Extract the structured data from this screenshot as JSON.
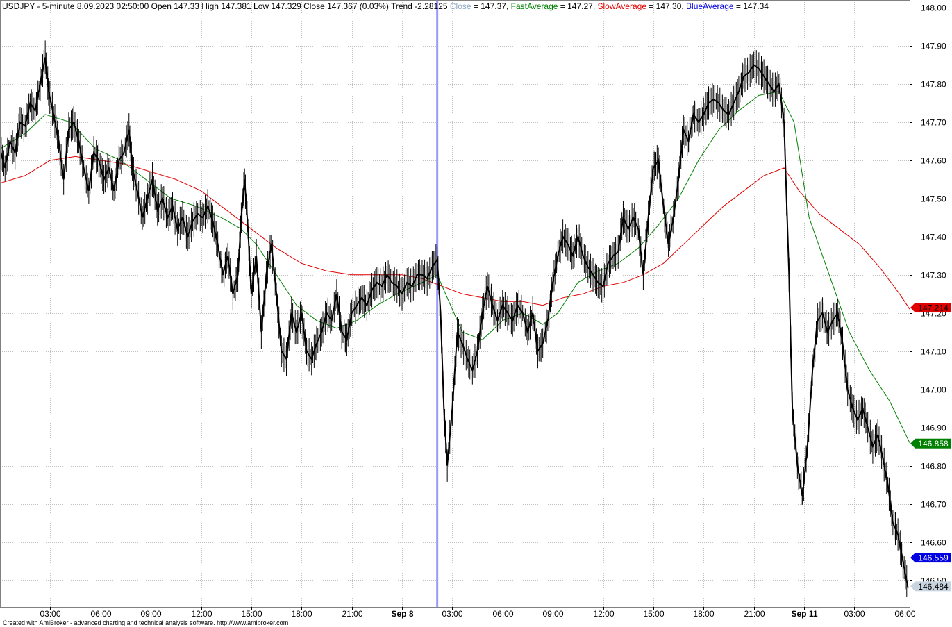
{
  "header": {
    "parts": [
      {
        "text": "USDJPY - 5-minute 8.09.2023 02:50:00 Open 147.33 High 147.381 Low 147.329 Close 147.367 (0.03%) Trend -2.28125 ",
        "color": "#000000"
      },
      {
        "text": "Close",
        "color": "#8fa8c8"
      },
      {
        "text": " = 147.37, ",
        "color": "#000000"
      },
      {
        "text": "FastAverage",
        "color": "#008000"
      },
      {
        "text": " = 147.27, ",
        "color": "#000000"
      },
      {
        "text": "SlowAverage",
        "color": "#e00000"
      },
      {
        "text": " = 147.30, ",
        "color": "#000000"
      },
      {
        "text": "BlueAverage",
        "color": "#0000e0"
      },
      {
        "text": " = 147.34",
        "color": "#000000"
      }
    ]
  },
  "footer_text": "Created with AmiBroker - advanced charting and technical analysis software. http://www.amibroker.com",
  "colors": {
    "price": "#000000",
    "fast": "#008000",
    "slow": "#e00000",
    "blue": "#0000e0",
    "cursor": "#9999ff",
    "grid": "#c0c0c0"
  },
  "chart_data": {
    "type": "candlestick",
    "symbol": "USDJPY",
    "interval": "5-minute",
    "ylim": [
      146.43,
      148.02
    ],
    "y_ticks": [
      "148.00",
      "147.90",
      "147.80",
      "147.70",
      "147.60",
      "147.50",
      "147.40",
      "147.30",
      "147.20",
      "147.10",
      "147.00",
      "146.90",
      "146.80",
      "146.70",
      "146.60",
      "146.50"
    ],
    "x_ticks": [
      {
        "label": "03:00",
        "pos": 3,
        "bold": false
      },
      {
        "label": "06:00",
        "pos": 6,
        "bold": false
      },
      {
        "label": "09:00",
        "pos": 9,
        "bold": false
      },
      {
        "label": "12:00",
        "pos": 12,
        "bold": false
      },
      {
        "label": "15:00",
        "pos": 15,
        "bold": false
      },
      {
        "label": "18:00",
        "pos": 18,
        "bold": false
      },
      {
        "label": "21:00",
        "pos": 21,
        "bold": false
      },
      {
        "label": "Sep 8",
        "pos": 24,
        "bold": true
      },
      {
        "label": "03:00",
        "pos": 27,
        "bold": false
      },
      {
        "label": "06:00",
        "pos": 30,
        "bold": false
      },
      {
        "label": "09:00",
        "pos": 33,
        "bold": false
      },
      {
        "label": "12:00",
        "pos": 36,
        "bold": false
      },
      {
        "label": "15:00",
        "pos": 39,
        "bold": false
      },
      {
        "label": "18:00",
        "pos": 42,
        "bold": false
      },
      {
        "label": "21:00",
        "pos": 45,
        "bold": false
      },
      {
        "label": "Sep 11",
        "pos": 48,
        "bold": true
      },
      {
        "label": "03:00",
        "pos": 51,
        "bold": false
      },
      {
        "label": "06:00",
        "pos": 54,
        "bold": false
      }
    ],
    "x_range": [
      0,
      54.3
    ],
    "cursor_pos": 26.1,
    "price_path": [
      [
        0,
        147.63
      ],
      [
        0.3,
        147.58
      ],
      [
        0.6,
        147.65
      ],
      [
        0.9,
        147.62
      ],
      [
        1.2,
        147.7
      ],
      [
        1.5,
        147.69
      ],
      [
        1.8,
        147.75
      ],
      [
        2.1,
        147.73
      ],
      [
        2.4,
        147.8
      ],
      [
        2.7,
        147.87
      ],
      [
        2.9,
        147.78
      ],
      [
        3.2,
        147.72
      ],
      [
        3.5,
        147.65
      ],
      [
        3.8,
        147.55
      ],
      [
        4.1,
        147.68
      ],
      [
        4.4,
        147.7
      ],
      [
        4.7,
        147.65
      ],
      [
        5.0,
        147.58
      ],
      [
        5.3,
        147.52
      ],
      [
        5.6,
        147.62
      ],
      [
        5.9,
        147.6
      ],
      [
        6.2,
        147.55
      ],
      [
        6.5,
        147.58
      ],
      [
        6.8,
        147.52
      ],
      [
        7.1,
        147.6
      ],
      [
        7.4,
        147.62
      ],
      [
        7.7,
        147.68
      ],
      [
        7.9,
        147.58
      ],
      [
        8.2,
        147.52
      ],
      [
        8.5,
        147.45
      ],
      [
        8.8,
        147.5
      ],
      [
        9.1,
        147.55
      ],
      [
        9.4,
        147.47
      ],
      [
        9.7,
        147.5
      ],
      [
        10.0,
        147.45
      ],
      [
        10.3,
        147.48
      ],
      [
        10.6,
        147.42
      ],
      [
        10.9,
        147.45
      ],
      [
        11.2,
        147.4
      ],
      [
        11.5,
        147.44
      ],
      [
        11.8,
        147.46
      ],
      [
        12.1,
        147.45
      ],
      [
        12.4,
        147.48
      ],
      [
        12.7,
        147.44
      ],
      [
        13.0,
        147.38
      ],
      [
        13.3,
        147.3
      ],
      [
        13.6,
        147.35
      ],
      [
        13.9,
        147.25
      ],
      [
        14.2,
        147.3
      ],
      [
        14.4,
        147.45
      ],
      [
        14.6,
        147.55
      ],
      [
        14.8,
        147.42
      ],
      [
        15.0,
        147.25
      ],
      [
        15.3,
        147.35
      ],
      [
        15.6,
        147.15
      ],
      [
        15.9,
        147.3
      ],
      [
        16.2,
        147.38
      ],
      [
        16.5,
        147.25
      ],
      [
        16.8,
        147.1
      ],
      [
        17.1,
        147.08
      ],
      [
        17.4,
        147.2
      ],
      [
        17.7,
        147.15
      ],
      [
        18.0,
        147.2
      ],
      [
        18.3,
        147.1
      ],
      [
        18.6,
        147.08
      ],
      [
        18.9,
        147.12
      ],
      [
        19.2,
        147.15
      ],
      [
        19.5,
        147.2
      ],
      [
        19.8,
        147.18
      ],
      [
        20.1,
        147.25
      ],
      [
        20.4,
        147.15
      ],
      [
        20.7,
        147.13
      ],
      [
        21.0,
        147.2
      ],
      [
        21.3,
        147.22
      ],
      [
        21.6,
        147.24
      ],
      [
        21.9,
        147.22
      ],
      [
        22.2,
        147.26
      ],
      [
        22.5,
        147.28
      ],
      [
        22.8,
        147.27
      ],
      [
        23.1,
        147.3
      ],
      [
        23.4,
        147.28
      ],
      [
        23.7,
        147.27
      ],
      [
        24.0,
        147.25
      ],
      [
        24.3,
        147.28
      ],
      [
        24.6,
        147.27
      ],
      [
        24.9,
        147.3
      ],
      [
        25.2,
        147.3
      ],
      [
        25.5,
        147.29
      ],
      [
        25.8,
        147.32
      ],
      [
        26.1,
        147.34
      ],
      [
        26.3,
        147.2
      ],
      [
        26.5,
        146.95
      ],
      [
        26.7,
        146.8
      ],
      [
        27.0,
        146.95
      ],
      [
        27.3,
        147.15
      ],
      [
        27.6,
        147.12
      ],
      [
        27.9,
        147.08
      ],
      [
        28.2,
        147.05
      ],
      [
        28.5,
        147.1
      ],
      [
        28.8,
        147.2
      ],
      [
        29.1,
        147.27
      ],
      [
        29.4,
        147.22
      ],
      [
        29.7,
        147.18
      ],
      [
        30.0,
        147.22
      ],
      [
        30.3,
        147.2
      ],
      [
        30.6,
        147.18
      ],
      [
        30.9,
        147.22
      ],
      [
        31.2,
        147.2
      ],
      [
        31.5,
        147.15
      ],
      [
        31.8,
        147.2
      ],
      [
        32.1,
        147.1
      ],
      [
        32.4,
        147.12
      ],
      [
        32.7,
        147.18
      ],
      [
        33.0,
        147.28
      ],
      [
        33.3,
        147.35
      ],
      [
        33.6,
        147.4
      ],
      [
        33.9,
        147.38
      ],
      [
        34.2,
        147.35
      ],
      [
        34.5,
        147.4
      ],
      [
        34.8,
        147.35
      ],
      [
        35.1,
        147.32
      ],
      [
        35.4,
        147.3
      ],
      [
        35.7,
        147.28
      ],
      [
        36.0,
        147.27
      ],
      [
        36.3,
        147.33
      ],
      [
        36.6,
        147.35
      ],
      [
        36.9,
        147.36
      ],
      [
        37.2,
        147.45
      ],
      [
        37.5,
        147.42
      ],
      [
        37.8,
        147.45
      ],
      [
        38.1,
        147.42
      ],
      [
        38.4,
        147.3
      ],
      [
        38.7,
        147.45
      ],
      [
        39.0,
        147.58
      ],
      [
        39.3,
        147.6
      ],
      [
        39.6,
        147.48
      ],
      [
        39.9,
        147.38
      ],
      [
        40.2,
        147.45
      ],
      [
        40.5,
        147.55
      ],
      [
        40.8,
        147.68
      ],
      [
        41.1,
        147.65
      ],
      [
        41.4,
        147.72
      ],
      [
        41.7,
        147.7
      ],
      [
        42.0,
        147.72
      ],
      [
        42.3,
        147.75
      ],
      [
        42.6,
        147.76
      ],
      [
        42.9,
        147.75
      ],
      [
        43.2,
        147.73
      ],
      [
        43.5,
        147.72
      ],
      [
        43.8,
        147.75
      ],
      [
        44.1,
        147.78
      ],
      [
        44.4,
        147.82
      ],
      [
        44.7,
        147.83
      ],
      [
        45.0,
        147.85
      ],
      [
        45.3,
        147.84
      ],
      [
        45.6,
        147.82
      ],
      [
        45.9,
        147.8
      ],
      [
        46.2,
        147.78
      ],
      [
        46.5,
        147.8
      ],
      [
        46.8,
        147.7
      ],
      [
        47.1,
        147.3
      ],
      [
        47.3,
        146.95
      ],
      [
        47.6,
        146.8
      ],
      [
        47.9,
        146.72
      ],
      [
        48.2,
        146.85
      ],
      [
        48.5,
        147.05
      ],
      [
        48.8,
        147.18
      ],
      [
        49.1,
        147.2
      ],
      [
        49.4,
        147.15
      ],
      [
        49.7,
        147.18
      ],
      [
        50.0,
        147.2
      ],
      [
        50.3,
        147.12
      ],
      [
        50.6,
        147.0
      ],
      [
        50.9,
        146.95
      ],
      [
        51.2,
        146.92
      ],
      [
        51.5,
        146.95
      ],
      [
        51.8,
        146.9
      ],
      [
        52.1,
        146.85
      ],
      [
        52.4,
        146.88
      ],
      [
        52.7,
        146.82
      ],
      [
        53.0,
        146.75
      ],
      [
        53.3,
        146.65
      ],
      [
        53.6,
        146.62
      ],
      [
        53.9,
        146.55
      ],
      [
        54.2,
        146.48
      ]
    ],
    "series": [
      {
        "name": "FastAverage",
        "color": "#008000",
        "last_value": "146.858",
        "points": [
          [
            0,
            147.63
          ],
          [
            1.5,
            147.67
          ],
          [
            2.7,
            147.72
          ],
          [
            4.2,
            147.7
          ],
          [
            5.7,
            147.63
          ],
          [
            7.2,
            147.6
          ],
          [
            8.7,
            147.55
          ],
          [
            10.2,
            147.5
          ],
          [
            11.7,
            147.48
          ],
          [
            13.2,
            147.45
          ],
          [
            14.4,
            147.42
          ],
          [
            15.3,
            147.38
          ],
          [
            16.5,
            147.3
          ],
          [
            17.7,
            147.22
          ],
          [
            18.9,
            147.18
          ],
          [
            20.1,
            147.16
          ],
          [
            21.3,
            147.18
          ],
          [
            22.5,
            147.22
          ],
          [
            23.7,
            147.25
          ],
          [
            25.2,
            147.28
          ],
          [
            26.1,
            147.3
          ],
          [
            26.7,
            147.24
          ],
          [
            27.6,
            147.15
          ],
          [
            28.8,
            147.13
          ],
          [
            30.0,
            147.18
          ],
          [
            31.2,
            147.2
          ],
          [
            32.4,
            147.17
          ],
          [
            33.3,
            147.2
          ],
          [
            34.5,
            147.28
          ],
          [
            35.7,
            147.31
          ],
          [
            36.9,
            147.33
          ],
          [
            38.1,
            147.37
          ],
          [
            39.3,
            147.43
          ],
          [
            40.5,
            147.5
          ],
          [
            41.7,
            147.6
          ],
          [
            42.9,
            147.68
          ],
          [
            44.1,
            147.73
          ],
          [
            45.3,
            147.77
          ],
          [
            46.5,
            147.78
          ],
          [
            47.4,
            147.7
          ],
          [
            48.3,
            147.45
          ],
          [
            49.5,
            147.3
          ],
          [
            50.7,
            147.15
          ],
          [
            51.9,
            147.05
          ],
          [
            53.1,
            146.97
          ],
          [
            54.3,
            146.86
          ]
        ]
      },
      {
        "name": "SlowAverage",
        "color": "#e00000",
        "last_value": "147.214",
        "points": [
          [
            0,
            147.54
          ],
          [
            1.5,
            147.56
          ],
          [
            3.0,
            147.6
          ],
          [
            4.5,
            147.61
          ],
          [
            6.0,
            147.6
          ],
          [
            7.5,
            147.59
          ],
          [
            9.0,
            147.57
          ],
          [
            10.5,
            147.55
          ],
          [
            12.0,
            147.52
          ],
          [
            13.5,
            147.47
          ],
          [
            15.0,
            147.42
          ],
          [
            16.5,
            147.37
          ],
          [
            18.0,
            147.33
          ],
          [
            19.5,
            147.31
          ],
          [
            21.0,
            147.3
          ],
          [
            22.5,
            147.3
          ],
          [
            24.0,
            147.3
          ],
          [
            25.2,
            147.29
          ],
          [
            26.4,
            147.27
          ],
          [
            27.6,
            147.25
          ],
          [
            28.8,
            147.24
          ],
          [
            30.0,
            147.23
          ],
          [
            31.2,
            147.23
          ],
          [
            32.4,
            147.22
          ],
          [
            33.6,
            147.24
          ],
          [
            34.8,
            147.25
          ],
          [
            36.0,
            147.27
          ],
          [
            37.2,
            147.28
          ],
          [
            38.4,
            147.3
          ],
          [
            39.6,
            147.33
          ],
          [
            40.8,
            147.38
          ],
          [
            42.0,
            147.43
          ],
          [
            43.2,
            147.48
          ],
          [
            44.4,
            147.52
          ],
          [
            45.6,
            147.56
          ],
          [
            46.8,
            147.58
          ],
          [
            47.7,
            147.52
          ],
          [
            48.9,
            147.46
          ],
          [
            50.1,
            147.42
          ],
          [
            51.3,
            147.38
          ],
          [
            52.5,
            147.32
          ],
          [
            53.7,
            147.25
          ],
          [
            54.3,
            147.21
          ]
        ]
      }
    ],
    "badges": [
      {
        "value": "147.214",
        "y": 147.214,
        "bg": "#e00000",
        "fg": "#000000"
      },
      {
        "value": "146.858",
        "y": 146.858,
        "bg": "#008000",
        "fg": "#ffffff"
      },
      {
        "value": "146.559",
        "y": 146.559,
        "bg": "#0000e0",
        "fg": "#ffffff"
      },
      {
        "value": "146.484",
        "y": 146.484,
        "bg": "#c8d4e0",
        "fg": "#000000"
      }
    ]
  }
}
